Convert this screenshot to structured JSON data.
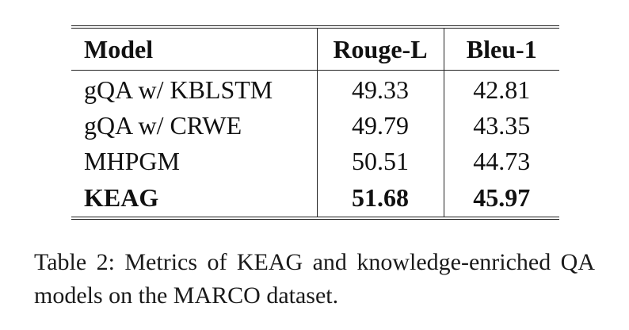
{
  "table": {
    "headers": [
      "Model",
      "Rouge-L",
      "Bleu-1"
    ],
    "rows": [
      {
        "model": "gQA w/ KBLSTM",
        "rouge_l": "49.33",
        "bleu_1": "42.81",
        "bold": false
      },
      {
        "model": "gQA w/ CRWE",
        "rouge_l": "49.79",
        "bleu_1": "43.35",
        "bold": false
      },
      {
        "model": "MHPGM",
        "rouge_l": "50.51",
        "bleu_1": "44.73",
        "bold": false
      },
      {
        "model": "KEAG",
        "rouge_l": "51.68",
        "bleu_1": "45.97",
        "bold": true
      }
    ]
  },
  "caption": "Table 2: Metrics of KEAG and knowledge-enriched QA models on the MARCO dataset."
}
